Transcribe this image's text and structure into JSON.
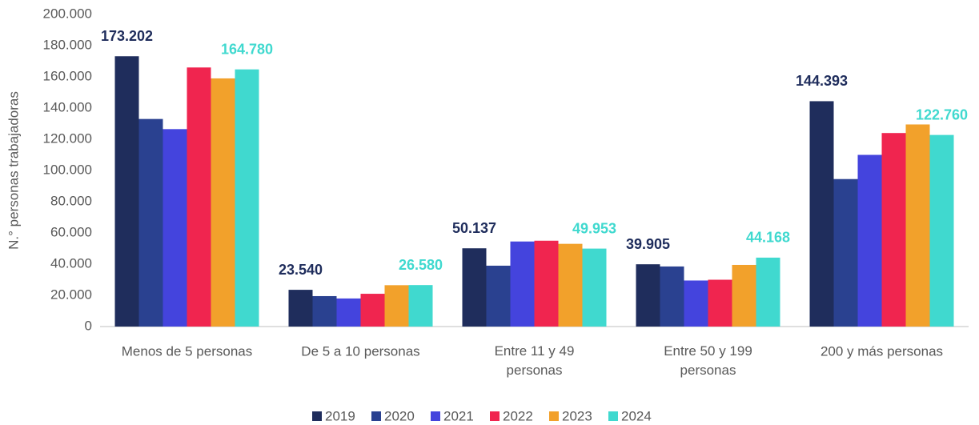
{
  "chart_data": {
    "type": "bar",
    "y_label": "N.° personas trabajadoras",
    "categories": [
      "Menos de 5 personas",
      "De 5 a 10 personas",
      "Entre 11 y 49 personas",
      "Entre 50 y 199 personas",
      "200 y más personas"
    ],
    "series": [
      {
        "name": "2019",
        "color": "#1f2d5c",
        "values": [
          173202,
          23540,
          50137,
          39905,
          144393
        ],
        "value_labels": [
          "173.202",
          "23.540",
          "50.137",
          "39.905",
          "144.393"
        ]
      },
      {
        "name": "2020",
        "color": "#2a4190",
        "values": [
          133000,
          19500,
          39000,
          38500,
          94500
        ]
      },
      {
        "name": "2021",
        "color": "#4444dd",
        "values": [
          126500,
          18000,
          54500,
          29500,
          110000
        ]
      },
      {
        "name": "2022",
        "color": "#f0254f",
        "values": [
          166000,
          21000,
          55000,
          30000,
          124000
        ]
      },
      {
        "name": "2023",
        "color": "#f2a12b",
        "values": [
          159000,
          26500,
          53000,
          39500,
          129500
        ]
      },
      {
        "name": "2024",
        "color": "#40d9cf",
        "values": [
          164780,
          26580,
          49953,
          44168,
          122760
        ],
        "value_labels": [
          "164.780",
          "26.580",
          "49.953",
          "44.168",
          "122.760"
        ]
      }
    ],
    "ylim": [
      0,
      200000
    ],
    "yticks": [
      0,
      {
        "value": 20000,
        "label": "20.000"
      },
      {
        "value": 40000,
        "label": "40.000"
      },
      {
        "value": 60000,
        "label": "60.000"
      },
      {
        "value": 80000,
        "label": "80.000"
      },
      {
        "value": 100000,
        "label": "100.000"
      },
      {
        "value": 120000,
        "label": "120.000"
      },
      {
        "value": 140000,
        "label": "140.000"
      },
      {
        "value": 160000,
        "label": "160.000"
      },
      {
        "value": 180000,
        "label": "180.000"
      },
      {
        "value": 200000,
        "label": "200.000"
      }
    ],
    "legend": "bottom"
  }
}
